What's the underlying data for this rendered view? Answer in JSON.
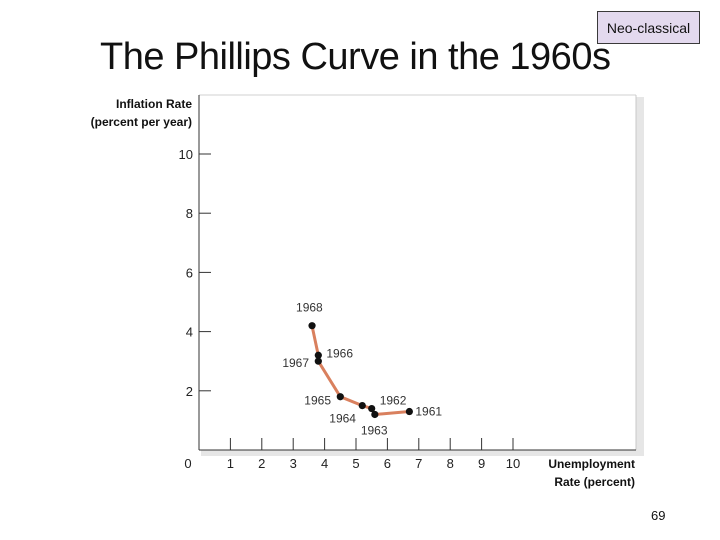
{
  "slide": {
    "title": "The Phillips Curve in the 1960s",
    "badge": "Neo-classical",
    "page_number": "69"
  },
  "chart_data": {
    "type": "line",
    "ylabel_lines": [
      "Inflation Rate",
      "(percent per year)"
    ],
    "xlabel_lines": [
      "Unemployment",
      "Rate (percent)"
    ],
    "xlim": [
      0,
      10.4
    ],
    "ylim": [
      0,
      11.7
    ],
    "x_ticks": [
      1,
      2,
      3,
      4,
      5,
      6,
      7,
      8,
      9,
      10
    ],
    "y_ticks": [
      2,
      4,
      6,
      8,
      10
    ],
    "origin_label": "0",
    "grid": false,
    "colors": {
      "line": "#d9805e",
      "point": "#111111",
      "axis": "#333333",
      "panel_shadow": "#e6e6e6"
    },
    "series": [
      {
        "points": [
          {
            "label": "1968",
            "x": 3.6,
            "y": 4.2
          },
          {
            "label": "1966",
            "x": 3.8,
            "y": 3.2
          },
          {
            "label": "1967",
            "x": 3.8,
            "y": 3.0
          },
          {
            "label": "1965",
            "x": 4.5,
            "y": 1.8
          },
          {
            "label": "1964",
            "x": 5.2,
            "y": 1.5
          },
          {
            "label": "1962",
            "x": 5.5,
            "y": 1.4
          },
          {
            "label": "1963",
            "x": 5.6,
            "y": 1.2
          },
          {
            "label": "1961",
            "x": 6.7,
            "y": 1.3
          }
        ]
      }
    ]
  }
}
